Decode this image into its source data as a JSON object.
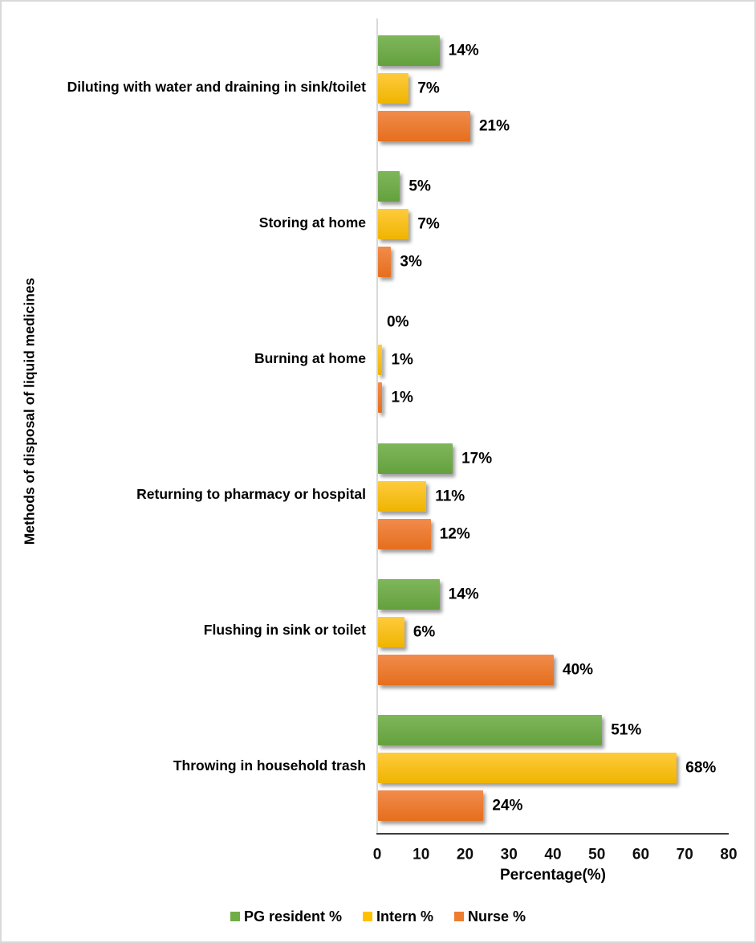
{
  "chart_data": {
    "type": "bar",
    "orientation": "horizontal",
    "title": "",
    "xlabel": "Percentage(%)",
    "ylabel": "Methods of disposal of liquid medicines",
    "xlim": [
      0,
      80
    ],
    "xticks": [
      0,
      10,
      20,
      30,
      40,
      50,
      60,
      70,
      80
    ],
    "grid": false,
    "legend_position": "bottom",
    "value_suffix": "%",
    "categories": [
      "Diluting with water and draining in sink/toilet",
      "Storing at home",
      "Burning at home",
      "Returning to pharmacy or hospital",
      "Flushing in sink or toilet",
      "Throwing in household trash"
    ],
    "series": [
      {
        "name": "PG resident %",
        "color": "#70AD47",
        "color_top": "#7EB75B",
        "color_bottom": "#65A03E",
        "values": [
          14,
          5,
          0,
          17,
          14,
          51
        ]
      },
      {
        "name": "Intern %",
        "color": "#FFC000",
        "color_top": "#FFCB3D",
        "color_bottom": "#EFB400",
        "values": [
          7,
          7,
          1,
          11,
          6,
          68
        ]
      },
      {
        "name": "Nurse %",
        "color": "#ED7D31",
        "color_top": "#F18B4C",
        "color_bottom": "#E56F1D",
        "values": [
          21,
          3,
          1,
          12,
          40,
          24
        ]
      }
    ]
  },
  "colors": {
    "axis_line_dark": "#3d3d3d",
    "axis_line_light": "#d9d9d9",
    "text": "#000000",
    "frame_border": "#d9d9d9",
    "background": "#ffffff"
  }
}
